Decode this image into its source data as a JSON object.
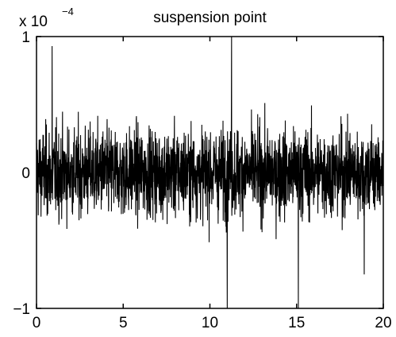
{
  "chart_data": {
    "type": "line",
    "title": "suspension point",
    "xlabel": "",
    "ylabel": "",
    "xlim": [
      0,
      20
    ],
    "ylim": [
      -1,
      1
    ],
    "y_exponent_base": "x 10",
    "y_exponent_power": "−4",
    "grid": false,
    "legend": "none",
    "line_color": "#000000",
    "x_ticks": [
      {
        "value": 0,
        "label": "0"
      },
      {
        "value": 5,
        "label": "5"
      },
      {
        "value": 10,
        "label": "10"
      },
      {
        "value": 15,
        "label": "15"
      },
      {
        "value": 20,
        "label": "20"
      }
    ],
    "y_ticks": [
      {
        "value": 1,
        "label": "1"
      },
      {
        "value": 0,
        "label": "0"
      },
      {
        "value": -1,
        "label": "−1"
      }
    ],
    "series": [
      {
        "description_of_signal": "dense zero-mean noise",
        "sample_count": 2000,
        "typical_peak": 0.55,
        "extreme_peaks": [
          {
            "x": 0.9,
            "y": 0.93
          },
          {
            "x": 11.0,
            "y": -1.0
          },
          {
            "x": 11.25,
            "y": 1.0
          },
          {
            "x": 15.1,
            "y": -1.0
          },
          {
            "x": 18.9,
            "y": -0.75
          }
        ]
      }
    ]
  }
}
